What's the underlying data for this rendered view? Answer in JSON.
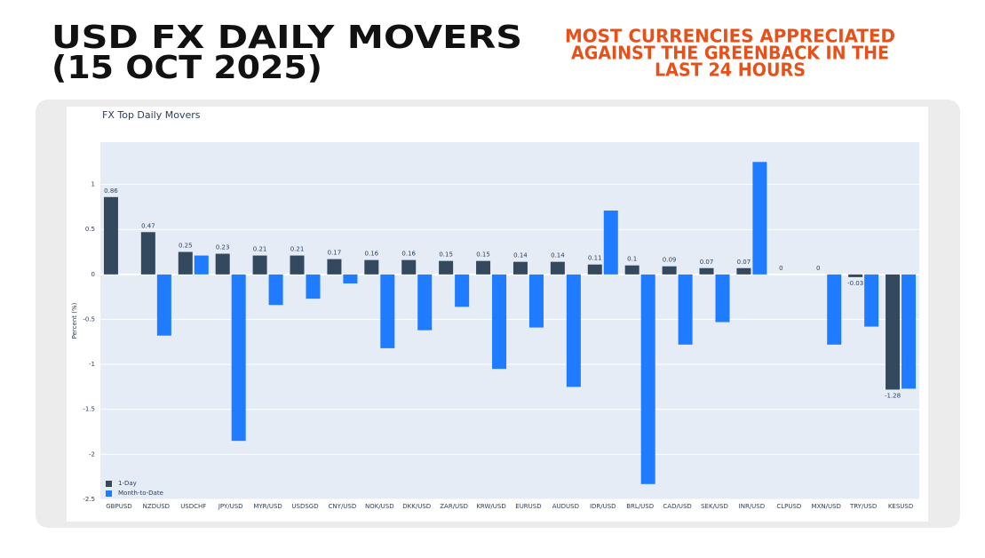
{
  "header": {
    "title": [
      "USD FX DAILY MOVERS",
      "(15 OCT 2025)"
    ],
    "callout": [
      "MOST CURRENCIES APPRECIATED",
      "AGAINST THE GREENBACK IN THE",
      "LAST 24 HOURS"
    ]
  },
  "chart_data": {
    "type": "bar",
    "title": "FX Top Daily Movers",
    "y_label": "Percent (%)",
    "categories": [
      "GBPUSD",
      "NZDUSD",
      "USDCHF",
      "JPY/USD",
      "MYR/USD",
      "USDSGD",
      "CNY/USD",
      "NOK/USD",
      "DKK/USD",
      "ZAR/USD",
      "KRW/USD",
      "EURUSD",
      "AUDUSD",
      "IDR/USD",
      "BRL/USD",
      "CAD/USD",
      "SEK/USD",
      "INR/USD",
      "CLPUSD",
      "MXN/USD",
      "TRY/USD",
      "KESUSD"
    ],
    "series": [
      {
        "name": "1-Day",
        "color": "#34495e",
        "values": [
          0.86,
          0.47,
          0.25,
          0.23,
          0.21,
          0.21,
          0.17,
          0.16,
          0.16,
          0.15,
          0.15,
          0.14,
          0.14,
          0.11,
          0.1,
          0.09,
          0.07,
          0.07,
          0,
          0,
          -0.03,
          -1.28
        ]
      },
      {
        "name": "Month-to-Date",
        "color": "#1f7bff",
        "values": [
          null,
          -0.68,
          0.21,
          -1.85,
          -0.34,
          -0.27,
          -0.1,
          -0.82,
          -0.62,
          -0.36,
          -1.05,
          -0.59,
          -1.25,
          0.71,
          -2.33,
          -0.78,
          -0.53,
          1.25,
          null,
          -0.78,
          -0.58,
          -1.27
        ]
      }
    ],
    "ylim": [
      -2.5,
      1.47
    ],
    "yticks": [
      -2.5,
      -2,
      -1.5,
      -1,
      -0.5,
      0,
      0.5,
      1
    ],
    "grid": true,
    "legend": "bottom-left",
    "data_labels_series": 0
  }
}
